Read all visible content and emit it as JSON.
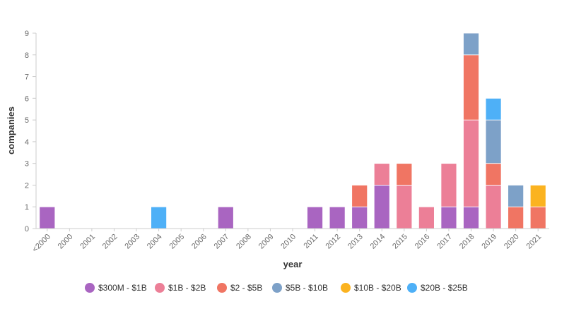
{
  "chart_data": {
    "type": "bar",
    "stacked": true,
    "categories": [
      "<2000",
      "2000",
      "2001",
      "2002",
      "2003",
      "2004",
      "2005",
      "2006",
      "2007",
      "2008",
      "2009",
      "2010",
      "2011",
      "2012",
      "2013",
      "2014",
      "2015",
      "2016",
      "2017",
      "2018",
      "2019",
      "2020",
      "2021"
    ],
    "series": [
      {
        "name": "$300M - $1B",
        "color": "#a965c1",
        "values": [
          1,
          0,
          0,
          0,
          0,
          0,
          0,
          0,
          1,
          0,
          0,
          0,
          1,
          1,
          1,
          2,
          0,
          0,
          1,
          1,
          0,
          0,
          0
        ]
      },
      {
        "name": "$1B - $2B",
        "color": "#ec7f97",
        "values": [
          0,
          0,
          0,
          0,
          0,
          0,
          0,
          0,
          0,
          0,
          0,
          0,
          0,
          0,
          0,
          1,
          2,
          1,
          2,
          4,
          2,
          0,
          0
        ]
      },
      {
        "name": "$2 - $5B",
        "color": "#f07563",
        "values": [
          0,
          0,
          0,
          0,
          0,
          0,
          0,
          0,
          0,
          0,
          0,
          0,
          0,
          0,
          1,
          0,
          1,
          0,
          0,
          3,
          1,
          1,
          1
        ]
      },
      {
        "name": "$5B - $10B",
        "color": "#7da1c8",
        "values": [
          0,
          0,
          0,
          0,
          0,
          0,
          0,
          0,
          0,
          0,
          0,
          0,
          0,
          0,
          0,
          0,
          0,
          0,
          0,
          1,
          2,
          1,
          0
        ]
      },
      {
        "name": "$10B - $20B",
        "color": "#fbb320",
        "values": [
          0,
          0,
          0,
          0,
          0,
          0,
          0,
          0,
          0,
          0,
          0,
          0,
          0,
          0,
          0,
          0,
          0,
          0,
          0,
          0,
          0,
          0,
          1
        ]
      },
      {
        "name": "$20B - $25B",
        "color": "#4eb0f7",
        "values": [
          0,
          0,
          0,
          0,
          0,
          1,
          0,
          0,
          0,
          0,
          0,
          0,
          0,
          0,
          0,
          0,
          0,
          0,
          0,
          0,
          1,
          0,
          0
        ]
      }
    ],
    "xlabel": "year",
    "ylabel": "companies",
    "ylim": [
      0,
      9
    ],
    "yticks": [
      0,
      1,
      2,
      3,
      4,
      5,
      6,
      7,
      8,
      9
    ],
    "grid": false,
    "legend_position": "bottom"
  }
}
